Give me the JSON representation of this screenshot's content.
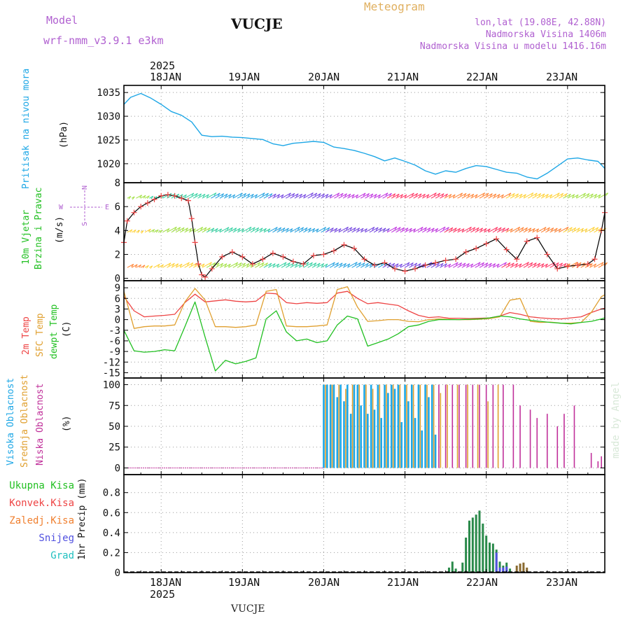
{
  "header": {
    "model_label": "Model",
    "model_name": "wrf-nmm_v3.9.1  e3km",
    "title": "Meteogram",
    "station": "VUCJE",
    "lonlat": "lon,lat (19.08E, 42.88N)",
    "altitude": "Nadmorska Visina 1406m",
    "model_altitude": "Nadmorska Visina u modelu 1416.16m",
    "footer_station": "VUCJE",
    "credit": "made by Angel"
  },
  "time_axis": {
    "year": "2025",
    "day_labels": [
      "18JAN",
      "19JAN",
      "20JAN",
      "21JAN",
      "22JAN",
      "23JAN"
    ],
    "range_hours": [
      -11,
      131
    ]
  },
  "panels": {
    "pressure": {
      "label": "Pritisak na nivou mora",
      "unit": "(hPa)"
    },
    "wind": {
      "label_line1": "10m Vjetar",
      "label_line2": "Brzina i Pravac",
      "unit": "(m/s)",
      "compass": {
        "n": "N",
        "s": "S",
        "w": "W",
        "e": "E"
      }
    },
    "temp": {
      "label_2m": "2m Temp",
      "label_sfc": "SFC Temp",
      "label_dew": "dewpt Temp",
      "unit": "(C)"
    },
    "cloud": {
      "label_high": "Visoka Oblacnost",
      "label_mid": "Srednja Oblacnost",
      "label_low": "Niska Oblacnost",
      "unit": "(%)"
    },
    "precip": {
      "unit_label": "1hr Precip (mm)",
      "legend": [
        "Ukupna Kisa",
        "Konvek.Kisa",
        "Zaledj.Kisa",
        "Snijeg",
        "Grad"
      ]
    }
  },
  "colors": {
    "pressure": "#1ea7e6",
    "temp_2m": "#ee4444",
    "temp_sfc": "#e0a030",
    "dewpoint": "#22c022",
    "wind_speed": "#000000",
    "wind_markers": "#ee4444",
    "cloud_high": "#1ea7e6",
    "cloud_mid": "#e0a030",
    "cloud_low": "#c0309a",
    "precip_total": "#2a8a4a",
    "precip_conv": "#ee4444",
    "precip_frz": "#f08030",
    "precip_snow": "#5050e0",
    "precip_grad": "#20c0c0",
    "title": "#e0b060",
    "info": "#b060d0"
  },
  "chart_data": [
    {
      "type": "line",
      "title": "Pritisak na nivou mora",
      "ylabel": "(hPa)",
      "yticks": [
        1020,
        1025,
        1030,
        1035
      ],
      "ylim": [
        1016,
        1036.5
      ],
      "x_hours": [
        -11,
        -9,
        -6,
        -3,
        0,
        3,
        6,
        9,
        12,
        15,
        18,
        21,
        24,
        27,
        30,
        33,
        36,
        39,
        42,
        45,
        48,
        51,
        54,
        57,
        60,
        63,
        66,
        69,
        72,
        75,
        78,
        81,
        84,
        87,
        90,
        93,
        96,
        99,
        102,
        105,
        108,
        111,
        114,
        117,
        120,
        123,
        126,
        129,
        131
      ],
      "values": [
        1032.5,
        1034.0,
        1034.8,
        1033.8,
        1032.5,
        1031.0,
        1030.2,
        1028.8,
        1026.0,
        1025.7,
        1025.8,
        1025.6,
        1025.5,
        1025.3,
        1025.1,
        1024.2,
        1023.8,
        1024.3,
        1024.5,
        1024.7,
        1024.5,
        1023.5,
        1023.2,
        1022.8,
        1022.2,
        1021.5,
        1020.6,
        1021.2,
        1020.5,
        1019.7,
        1018.5,
        1017.8,
        1018.5,
        1018.2,
        1019.0,
        1019.6,
        1019.4,
        1018.8,
        1018.2,
        1018.0,
        1017.2,
        1016.8,
        1018.0,
        1019.5,
        1021.0,
        1021.2,
        1020.8,
        1020.5,
        1019.0
      ]
    },
    {
      "type": "line",
      "title": "10m Vjetar Brzina i Pravac",
      "ylabel": "(m/s)",
      "yticks": [
        0,
        2,
        4,
        6,
        8
      ],
      "ylim": [
        -0.2,
        8
      ],
      "x_hours": [
        -11,
        -10,
        -8,
        -6,
        -4,
        -2,
        0,
        2,
        4,
        6,
        8,
        9,
        10,
        11,
        12,
        13,
        15,
        18,
        21,
        24,
        27,
        30,
        33,
        36,
        39,
        42,
        45,
        48,
        51,
        54,
        57,
        60,
        63,
        66,
        69,
        72,
        75,
        78,
        81,
        84,
        87,
        90,
        93,
        96,
        99,
        102,
        105,
        108,
        111,
        114,
        117,
        120,
        123,
        126,
        128,
        130,
        131
      ],
      "values": [
        3.0,
        4.8,
        5.5,
        6.0,
        6.3,
        6.6,
        6.9,
        7.0,
        6.9,
        6.7,
        6.5,
        5.0,
        3.0,
        1.2,
        0.3,
        0.1,
        0.8,
        1.8,
        2.2,
        1.8,
        1.2,
        1.6,
        2.1,
        1.8,
        1.4,
        1.2,
        1.9,
        2.0,
        2.3,
        2.8,
        2.5,
        1.6,
        1.1,
        1.3,
        0.8,
        0.6,
        0.8,
        1.1,
        1.3,
        1.5,
        1.6,
        2.2,
        2.5,
        2.9,
        3.3,
        2.4,
        1.6,
        3.1,
        3.4,
        2.0,
        0.8,
        1.0,
        1.1,
        1.2,
        1.6,
        4.0,
        5.5
      ]
    },
    {
      "type": "line",
      "title": "2m Temp / SFC Temp / dewpt Temp",
      "ylabel": "(C)",
      "yticks": [
        -15,
        -12,
        -9,
        -6,
        -3,
        0,
        3,
        6,
        9
      ],
      "ylim": [
        -16.5,
        11
      ],
      "x_hours": [
        -11,
        -8,
        -5,
        -2,
        1,
        4,
        7,
        10,
        13,
        16,
        19,
        22,
        25,
        28,
        31,
        34,
        37,
        40,
        43,
        46,
        49,
        52,
        55,
        58,
        61,
        64,
        67,
        70,
        73,
        76,
        79,
        82,
        85,
        88,
        91,
        94,
        97,
        100,
        103,
        106,
        109,
        112,
        115,
        118,
        121,
        124,
        127,
        130,
        131
      ],
      "series": [
        {
          "name": "2m Temp",
          "values": [
            6.5,
            2.5,
            0.8,
            1.0,
            1.2,
            1.5,
            4.8,
            7.2,
            5.0,
            5.3,
            5.6,
            5.2,
            5.0,
            5.2,
            7.5,
            7.3,
            4.8,
            4.5,
            4.8,
            4.6,
            4.8,
            7.5,
            8.0,
            6.0,
            4.5,
            4.8,
            4.4,
            4.0,
            2.5,
            1.2,
            0.6,
            0.8,
            0.4,
            0.4,
            0.3,
            0.4,
            0.5,
            1.0,
            2.0,
            1.5,
            0.8,
            0.5,
            0.3,
            0.2,
            0.5,
            0.8,
            2.0,
            3.0,
            3.2
          ]
        },
        {
          "name": "SFC Temp",
          "values": [
            8.0,
            -2.5,
            -2.0,
            -1.8,
            -1.8,
            -1.5,
            5.0,
            8.8,
            5.5,
            -2.0,
            -2.0,
            -2.2,
            -2.0,
            -1.5,
            8.0,
            8.5,
            -1.8,
            -2.0,
            -2.0,
            -1.8,
            -1.5,
            8.5,
            9.3,
            3.5,
            -0.5,
            -0.3,
            0.0,
            0.0,
            -0.5,
            -0.6,
            0.0,
            0.2,
            0.1,
            0.0,
            0.0,
            0.1,
            0.3,
            0.8,
            5.5,
            6.0,
            -0.5,
            -0.8,
            -0.7,
            -1.0,
            -1.0,
            -0.8,
            2.0,
            6.5,
            7.0
          ]
        },
        {
          "name": "dewpt Temp",
          "values": [
            -3.0,
            -8.8,
            -9.2,
            -9.0,
            -8.5,
            -8.8,
            -2.0,
            5.0,
            -5.0,
            -14.5,
            -11.5,
            -12.5,
            -11.8,
            -10.8,
            0.2,
            2.5,
            -3.5,
            -6.0,
            -5.5,
            -6.5,
            -6.0,
            -1.5,
            1.0,
            0.2,
            -7.5,
            -6.5,
            -5.5,
            -4.0,
            -2.0,
            -1.5,
            -0.5,
            0.0,
            0.0,
            0.0,
            0.1,
            0.2,
            0.5,
            1.0,
            0.8,
            0.2,
            -0.2,
            -0.5,
            -0.8,
            -1.0,
            -1.2,
            -0.8,
            -0.5,
            0.2,
            0.5
          ]
        }
      ]
    },
    {
      "type": "bar",
      "title": "Visoka / Srednja / Niska Oblacnost",
      "ylabel": "(%)",
      "yticks": [
        0,
        25,
        50,
        75,
        100
      ],
      "ylim": [
        -8,
        108
      ],
      "series": [
        {
          "name": "Visoka Oblacnost",
          "x_hours": [
            48,
            49,
            50,
            51,
            52,
            53,
            54,
            55,
            56,
            57,
            58,
            59,
            60,
            61,
            62,
            63,
            64,
            65,
            66,
            67,
            68,
            69,
            70,
            71,
            72,
            73,
            74,
            75,
            76,
            77,
            78,
            79,
            80,
            81
          ],
          "values": [
            100,
            100,
            100,
            100,
            85,
            100,
            80,
            100,
            65,
            100,
            100,
            75,
            100,
            65,
            100,
            70,
            100,
            60,
            100,
            90,
            100,
            95,
            100,
            55,
            100,
            80,
            100,
            60,
            100,
            45,
            100,
            85,
            100,
            40
          ]
        },
        {
          "name": "Srednja Oblacnost",
          "x_hours": [
            48.5,
            50.5,
            52.5,
            54.5,
            56.5,
            58.5,
            60.5,
            62.5,
            64.5,
            66.5,
            68.5,
            70.5,
            72.5,
            74.5,
            76.5,
            78.5,
            80.5,
            82.5,
            84.5,
            87.5,
            90.5,
            93.5,
            96.5,
            99.5
          ],
          "values": [
            100,
            100,
            100,
            95,
            100,
            100,
            100,
            95,
            100,
            100,
            100,
            100,
            100,
            100,
            100,
            100,
            100,
            90,
            100,
            100,
            100,
            100,
            80,
            100
          ]
        },
        {
          "name": "Niska Oblacnost",
          "x_hours": [
            82,
            84,
            86,
            88,
            90,
            92,
            94,
            96,
            98,
            101,
            104,
            106,
            109,
            111,
            114,
            117,
            119,
            122,
            127,
            129,
            130
          ],
          "values": [
            100,
            100,
            100,
            100,
            100,
            100,
            100,
            100,
            100,
            100,
            100,
            75,
            70,
            60,
            65,
            50,
            65,
            75,
            18,
            8,
            14
          ]
        }
      ]
    },
    {
      "type": "bar",
      "title": "1hr Precip",
      "ylabel": "1hr Precip (mm)",
      "yticks": [
        0,
        0.2,
        0.4,
        0.6,
        0.8
      ],
      "ylim": [
        0,
        0.98
      ],
      "series": [
        {
          "name": "Ukupna Kisa",
          "x_hours": [
            85,
            86,
            87,
            89,
            90,
            91,
            92,
            93,
            94,
            95,
            96,
            97,
            98,
            99,
            100,
            101,
            102,
            103
          ],
          "values": [
            0.05,
            0.11,
            0.04,
            0.1,
            0.35,
            0.52,
            0.55,
            0.58,
            0.62,
            0.49,
            0.37,
            0.3,
            0.29,
            0.23,
            0.11,
            0.07,
            0.1,
            0.04
          ]
        },
        {
          "name": "Snijeg",
          "x_hours": [
            99,
            100,
            101,
            102
          ],
          "values": [
            0.2,
            0.05,
            0.05,
            0.06
          ]
        },
        {
          "name": "Zaledj.Kisa",
          "x_hours": [
            105,
            106,
            107,
            108
          ],
          "values": [
            0.07,
            0.09,
            0.1,
            0.05
          ]
        }
      ]
    }
  ]
}
